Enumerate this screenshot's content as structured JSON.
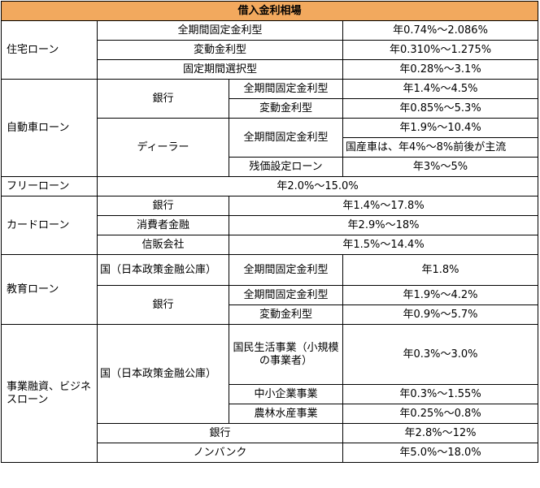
{
  "title": "借入金利相場",
  "housing": {
    "label": "住宅ローン",
    "rows": [
      {
        "type": "全期間固定金利型",
        "rate": "年0.74%～2.086%"
      },
      {
        "type": "変動金利型",
        "rate": "年0.310%～1.275%"
      },
      {
        "type": "固定期間選択型",
        "rate": "年0.28%～3.1%"
      }
    ]
  },
  "car": {
    "label": "自動車ローン",
    "bank": "銀行",
    "bank_rows": [
      {
        "type": "全期間固定金利型",
        "rate": "年1.4%～4.5%"
      },
      {
        "type": "変動金利型",
        "rate": "年0.85%～5.3%"
      }
    ],
    "dealer": "ディーラー",
    "dealer_fixed": "全期間固定金利型",
    "dealer_fixed_rate": "年1.9%～10.4%",
    "dealer_note": "国産車は、年4%～8%前後が主流",
    "residual": "残価設定ローン",
    "residual_rate": "年3%～5%"
  },
  "free": {
    "label": "フリーローン",
    "rate": "年2.0%～15.0%"
  },
  "card": {
    "label": "カードローン",
    "rows": [
      {
        "type": "銀行",
        "rate": "年1.4%～17.8%"
      },
      {
        "type": "消費者金融",
        "rate": "年2.9%～18%"
      },
      {
        "type": "信販会社",
        "rate": "年1.5%～14.4%"
      }
    ]
  },
  "education": {
    "label": "教育ローン",
    "gov": "国（日本政策金融公庫）",
    "gov_type": "全期間固定金利型",
    "gov_rate": "年1.8%",
    "bank": "銀行",
    "bank_rows": [
      {
        "type": "全期間固定金利型",
        "rate": "年1.9%～4.2%"
      },
      {
        "type": "変動金利型",
        "rate": "年0.9%～5.7%"
      }
    ]
  },
  "business": {
    "label": "事業融資、ビジネスローン",
    "gov": "国（日本政策金融公庫）",
    "gov_rows": [
      {
        "type": "国民生活事業（小規模の事業者）",
        "rate": "年0.3%～3.0%"
      },
      {
        "type": "中小企業事業",
        "rate": "年0.3%～1.55%"
      },
      {
        "type": "農林水産事業",
        "rate": "年0.25%～0.8%"
      }
    ],
    "bank": "銀行",
    "bank_rate": "年2.8%～12%",
    "nonbank": "ノンバンク",
    "nonbank_rate": "年5.0%～18.0%"
  }
}
